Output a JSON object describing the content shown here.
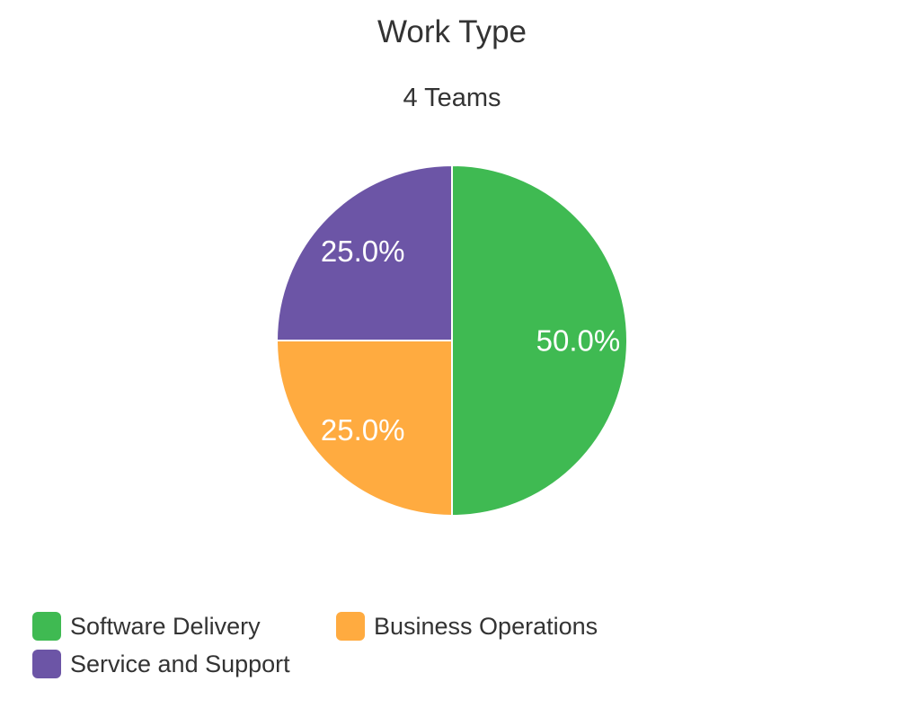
{
  "chart_data": {
    "type": "pie",
    "title": "Work Type",
    "subtitle": "4 Teams",
    "slices": [
      {
        "label": "Software Delivery",
        "value": 50.0,
        "display": "50.0%",
        "color": "#3fba52"
      },
      {
        "label": "Business Operations",
        "value": 25.0,
        "display": "25.0%",
        "color": "#ffab40"
      },
      {
        "label": "Service and Support",
        "value": 25.0,
        "display": "25.0%",
        "color": "#6c55a6"
      }
    ],
    "legend_position": "bottom-left"
  }
}
